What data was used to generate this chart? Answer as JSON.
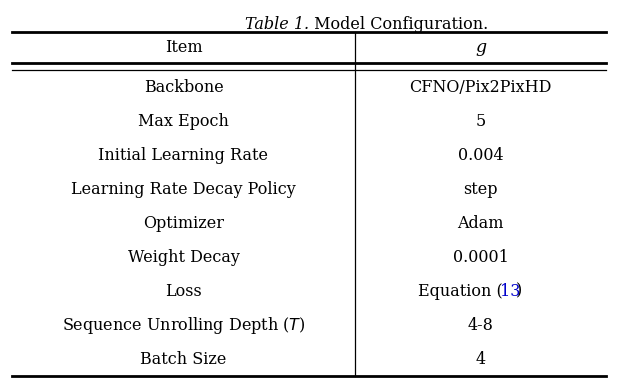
{
  "title_italic": "Table 1.",
  "title_normal": " Model Configuration.",
  "col_header_left": "Item",
  "col_header_right": "g",
  "rows": [
    {
      "left": "Backbone",
      "right": "CFNO/Pix2PixHD",
      "left_italic_T": false,
      "right_blue_13": false
    },
    {
      "left": "Max Epoch",
      "right": "5",
      "left_italic_T": false,
      "right_blue_13": false
    },
    {
      "left": "Initial Learning Rate",
      "right": "0.004",
      "left_italic_T": false,
      "right_blue_13": false
    },
    {
      "left": "Learning Rate Decay Policy",
      "right": "step",
      "left_italic_T": false,
      "right_blue_13": false
    },
    {
      "left": "Optimizer",
      "right": "Adam",
      "left_italic_T": false,
      "right_blue_13": false
    },
    {
      "left": "Weight Decay",
      "right": "0.0001",
      "left_italic_T": false,
      "right_blue_13": false
    },
    {
      "left": "Loss",
      "right": "Equation (13)",
      "left_italic_T": false,
      "right_blue_13": true
    },
    {
      "left": "Sequence Unrolling Depth (T)",
      "right": "4-8",
      "left_italic_T": true,
      "right_blue_13": false
    },
    {
      "left": "Batch Size",
      "right": "4",
      "left_italic_T": false,
      "right_blue_13": false
    }
  ],
  "bg": "#ffffff",
  "tc": "#000000",
  "bc": "#0000cc",
  "lc": "#000000",
  "fs": 11.5,
  "title_fs": 11.5
}
